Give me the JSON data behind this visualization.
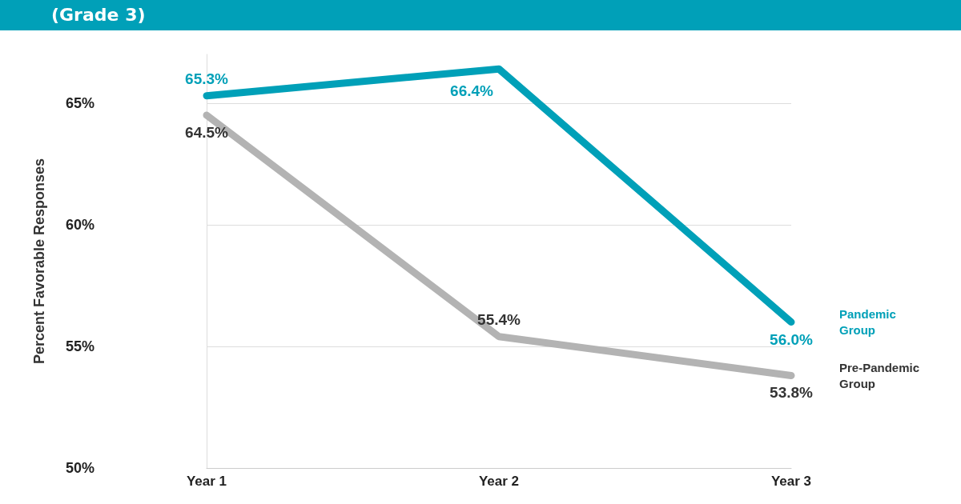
{
  "chart_data": {
    "type": "line",
    "title": "(Grade 3)",
    "ylabel": "Percent Favorable Responses",
    "categories": [
      "Year 1",
      "Year 2",
      "Year 3"
    ],
    "series": [
      {
        "name": "Pandemic Group",
        "color": "#00a0b8",
        "values": [
          65.3,
          66.4,
          56.0
        ],
        "value_labels": [
          "65.3%",
          "66.4%",
          "56.0%"
        ]
      },
      {
        "name": "Pre-Pandemic Group",
        "color": "#b3b3b3",
        "values": [
          64.5,
          55.4,
          53.8
        ],
        "value_labels": [
          "64.5%",
          "55.4%",
          "53.8%"
        ]
      }
    ],
    "ylim": [
      50,
      67
    ],
    "yticks": [
      {
        "value": 50,
        "label": "50%"
      },
      {
        "value": 55,
        "label": "55%"
      },
      {
        "value": 60,
        "label": "60%"
      },
      {
        "value": 65,
        "label": "65%"
      }
    ],
    "grid": "y",
    "marker": "none",
    "line_style": "solid",
    "legend": false
  }
}
